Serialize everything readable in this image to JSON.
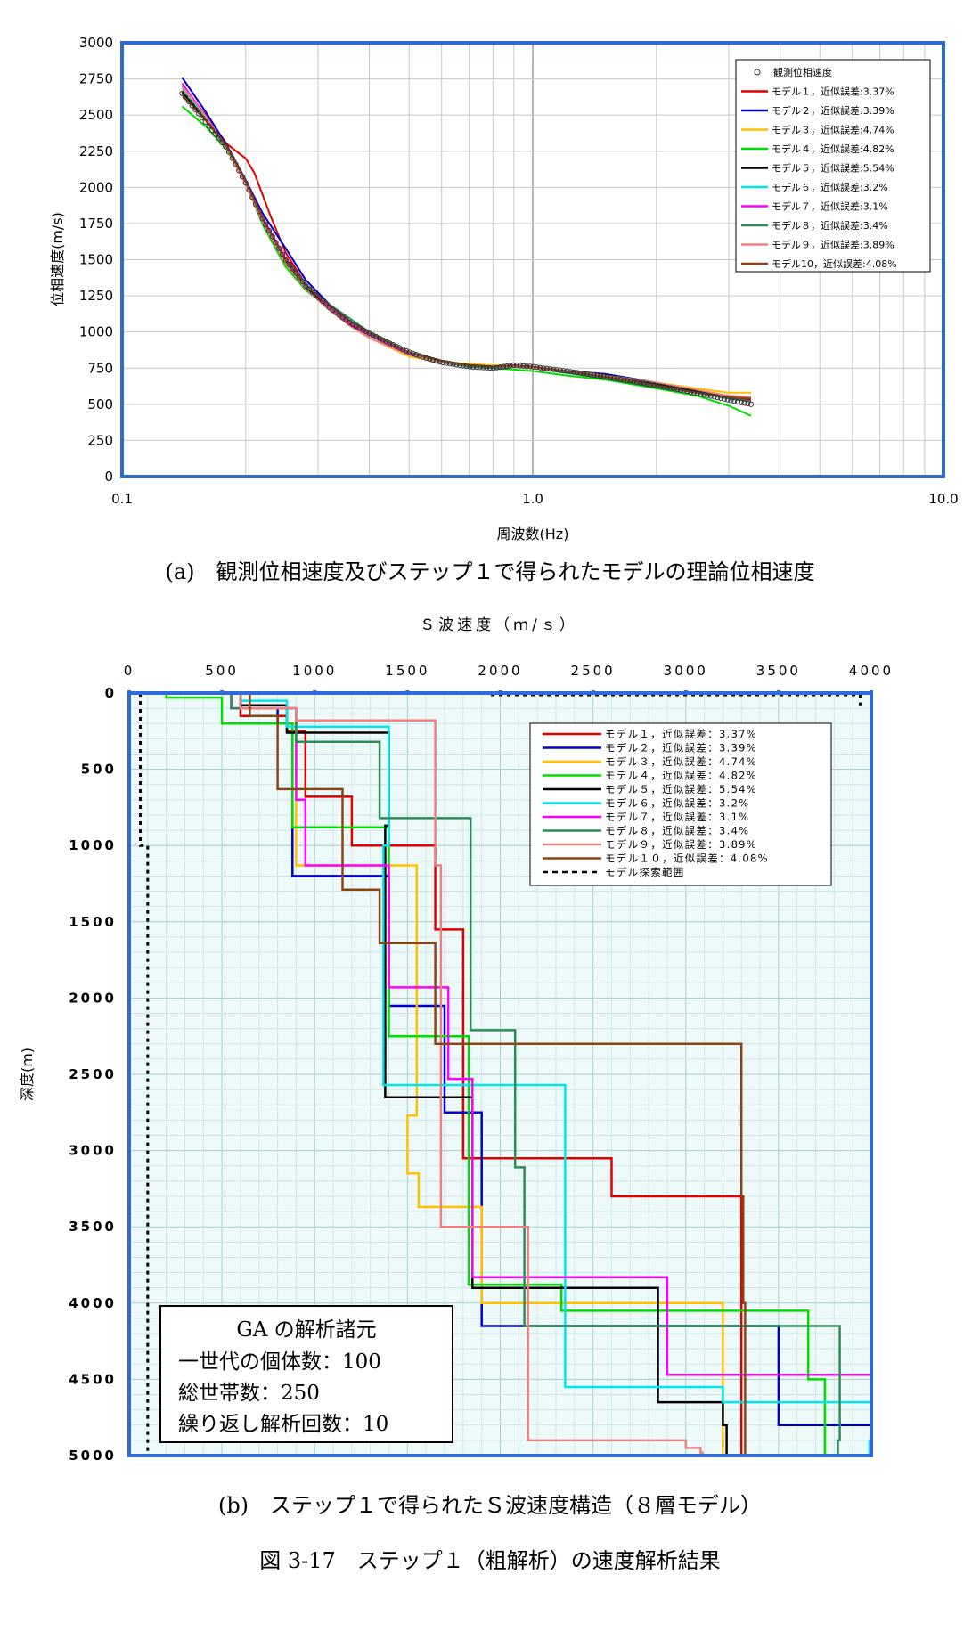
{
  "chart_data": [
    {
      "type": "line",
      "xscale": "log",
      "xlabel": "周波数(Hz)",
      "ylabel": "位相速度(m/s)",
      "xlim": [
        0.1,
        10.0
      ],
      "ylim": [
        0,
        3000
      ],
      "grid": true,
      "legend": "top-right",
      "xticks": [
        "0.1",
        "1.0",
        "10.0"
      ],
      "yticks": [
        "0",
        "250",
        "500",
        "750",
        "1000",
        "1250",
        "1500",
        "1750",
        "2000",
        "2250",
        "2500",
        "2750",
        "3000"
      ],
      "observed": {
        "name": "観測位相速度",
        "x": [
          0.14,
          0.16,
          0.18,
          0.2,
          0.22,
          0.25,
          0.28,
          0.32,
          0.36,
          0.4,
          0.45,
          0.5,
          0.55,
          0.6,
          0.7,
          0.8,
          0.9,
          1.0,
          1.2,
          1.5,
          2.0,
          2.5,
          3.0,
          3.4
        ],
        "y": [
          2650,
          2450,
          2270,
          2030,
          1780,
          1500,
          1320,
          1170,
          1060,
          990,
          920,
          860,
          820,
          790,
          760,
          750,
          770,
          760,
          730,
          690,
          630,
          580,
          530,
          500
        ]
      },
      "series": [
        {
          "name": "モデル１，近似誤差:3.37%",
          "color": "#e00000",
          "x": [
            0.14,
            0.16,
            0.18,
            0.2,
            0.21,
            0.23,
            0.25,
            0.28,
            0.32,
            0.36,
            0.4,
            0.5,
            0.6,
            0.7,
            0.8,
            0.9,
            1.0,
            1.2,
            1.5,
            2.0,
            2.5,
            3.0,
            3.4
          ],
          "y": [
            2700,
            2500,
            2300,
            2200,
            2100,
            1800,
            1550,
            1330,
            1160,
            1050,
            980,
            850,
            790,
            770,
            760,
            770,
            760,
            730,
            700,
            640,
            590,
            550,
            530
          ]
        },
        {
          "name": "モデル２，近似誤差:3.39%",
          "color": "#0000cc",
          "x": [
            0.14,
            0.16,
            0.18,
            0.2,
            0.22,
            0.25,
            0.28,
            0.32,
            0.36,
            0.4,
            0.5,
            0.6,
            0.7,
            0.8,
            0.9,
            1.0,
            1.2,
            1.5,
            2.0,
            2.5,
            3.0,
            3.4
          ],
          "y": [
            2760,
            2520,
            2290,
            2050,
            1820,
            1580,
            1360,
            1190,
            1070,
            990,
            860,
            790,
            760,
            750,
            760,
            750,
            730,
            710,
            650,
            590,
            540,
            520
          ]
        },
        {
          "name": "モデル３，近似誤差:4.74%",
          "color": "#ffc000",
          "x": [
            0.14,
            0.16,
            0.18,
            0.2,
            0.22,
            0.25,
            0.28,
            0.32,
            0.36,
            0.4,
            0.5,
            0.6,
            0.7,
            0.8,
            0.9,
            1.0,
            1.2,
            1.5,
            2.0,
            2.5,
            3.0,
            3.4
          ],
          "y": [
            2680,
            2480,
            2270,
            2020,
            1760,
            1480,
            1300,
            1150,
            1040,
            960,
            830,
            790,
            780,
            770,
            760,
            750,
            730,
            700,
            650,
            610,
            580,
            580
          ]
        },
        {
          "name": "モデル４，近似誤差:4.82%",
          "color": "#00dd00",
          "x": [
            0.14,
            0.16,
            0.18,
            0.2,
            0.22,
            0.25,
            0.28,
            0.32,
            0.36,
            0.4,
            0.5,
            0.6,
            0.7,
            0.8,
            0.9,
            1.0,
            1.2,
            1.5,
            2.0,
            2.5,
            3.0,
            3.4
          ],
          "y": [
            2560,
            2420,
            2260,
            2030,
            1740,
            1450,
            1290,
            1160,
            1060,
            980,
            850,
            790,
            760,
            750,
            740,
            730,
            700,
            670,
            610,
            560,
            490,
            420
          ]
        },
        {
          "name": "モデル５，近似誤差:5.54%",
          "color": "#000000",
          "x": [
            0.14,
            0.16,
            0.18,
            0.2,
            0.22,
            0.25,
            0.28,
            0.32,
            0.36,
            0.4,
            0.5,
            0.6,
            0.7,
            0.8,
            0.9,
            1.0,
            1.2,
            1.5,
            2.0,
            2.5,
            3.0,
            3.4
          ],
          "y": [
            2660,
            2470,
            2280,
            2030,
            1770,
            1490,
            1310,
            1170,
            1060,
            990,
            860,
            800,
            770,
            760,
            760,
            750,
            730,
            700,
            640,
            590,
            550,
            540
          ]
        },
        {
          "name": "モデル６，近似誤差:3.2%",
          "color": "#00e5ee",
          "x": [
            0.14,
            0.16,
            0.18,
            0.2,
            0.22,
            0.25,
            0.28,
            0.32,
            0.36,
            0.4,
            0.5,
            0.6,
            0.7,
            0.8,
            0.9,
            1.0,
            1.2,
            1.5,
            2.0,
            2.5,
            3.0,
            3.4
          ],
          "y": [
            2690,
            2480,
            2270,
            2030,
            1790,
            1510,
            1330,
            1180,
            1070,
            990,
            860,
            790,
            760,
            750,
            760,
            750,
            730,
            690,
            630,
            580,
            540,
            520
          ]
        },
        {
          "name": "モデル７，近似誤差:3.1%",
          "color": "#ff00ff",
          "x": [
            0.14,
            0.16,
            0.18,
            0.2,
            0.22,
            0.25,
            0.28,
            0.32,
            0.36,
            0.4,
            0.5,
            0.6,
            0.7,
            0.8,
            0.9,
            1.0,
            1.2,
            1.5,
            2.0,
            2.5,
            3.0,
            3.4
          ],
          "y": [
            2720,
            2490,
            2280,
            2040,
            1790,
            1510,
            1330,
            1170,
            1060,
            980,
            850,
            790,
            760,
            750,
            760,
            750,
            730,
            690,
            630,
            580,
            540,
            520
          ]
        },
        {
          "name": "モデル８，近似誤差:3.4%",
          "color": "#2e8b57",
          "x": [
            0.14,
            0.16,
            0.18,
            0.2,
            0.22,
            0.25,
            0.28,
            0.32,
            0.36,
            0.4,
            0.5,
            0.6,
            0.7,
            0.8,
            0.9,
            1.0,
            1.2,
            1.5,
            2.0,
            2.5,
            3.0,
            3.4
          ],
          "y": [
            2640,
            2460,
            2270,
            2030,
            1770,
            1490,
            1320,
            1190,
            1090,
            1000,
            860,
            790,
            760,
            750,
            760,
            750,
            720,
            680,
            620,
            580,
            540,
            520
          ]
        },
        {
          "name": "モデル９，近似誤差:3.89%",
          "color": "#f08080",
          "x": [
            0.14,
            0.16,
            0.18,
            0.2,
            0.22,
            0.25,
            0.28,
            0.32,
            0.36,
            0.4,
            0.5,
            0.6,
            0.7,
            0.8,
            0.9,
            1.0,
            1.2,
            1.5,
            2.0,
            2.5,
            3.0,
            3.4
          ],
          "y": [
            2700,
            2490,
            2270,
            2020,
            1760,
            1470,
            1300,
            1150,
            1040,
            960,
            840,
            790,
            770,
            760,
            760,
            750,
            730,
            700,
            650,
            600,
            560,
            550
          ]
        },
        {
          "name": "モデル10，近似誤差:4.08%",
          "color": "#8b4513",
          "x": [
            0.14,
            0.16,
            0.18,
            0.2,
            0.22,
            0.25,
            0.28,
            0.32,
            0.36,
            0.4,
            0.5,
            0.6,
            0.7,
            0.8,
            0.9,
            1.0,
            1.2,
            1.5,
            2.0,
            2.5,
            3.0,
            3.4
          ],
          "y": [
            2640,
            2460,
            2280,
            2040,
            1780,
            1500,
            1330,
            1180,
            1070,
            990,
            860,
            800,
            770,
            760,
            770,
            760,
            730,
            690,
            630,
            580,
            550,
            540
          ]
        }
      ]
    },
    {
      "type": "line",
      "xlabel": "Ｓ波速度（ｍ/ｓ）",
      "ylabel": "深度(m)",
      "xlim": [
        0,
        4000
      ],
      "ylim": [
        5000,
        0
      ],
      "grid": true,
      "legend": "top-right",
      "xticks": [
        "0",
        "500",
        "1000",
        "1500",
        "2000",
        "2500",
        "3000",
        "3500",
        "4000"
      ],
      "yticks": [
        "0",
        "500",
        "1000",
        "1500",
        "2000",
        "2500",
        "3000",
        "3500",
        "4000",
        "4500",
        "5000"
      ],
      "series": [
        {
          "name": "モデル１，近似誤差：3.37%",
          "color": "#e00000",
          "velocity": [
            600,
            850,
            950,
            1200,
            1650,
            1800,
            2600,
            3300
          ],
          "bottom": [
            150,
            250,
            680,
            1000,
            1550,
            3050,
            3300,
            5000
          ]
        },
        {
          "name": "モデル２，近似誤差：3.39%",
          "color": "#0000cc",
          "velocity": [
            600,
            800,
            880,
            1400,
            1700,
            1900,
            3500,
            4000
          ],
          "bottom": [
            100,
            200,
            1200,
            2050,
            2750,
            4150,
            4800,
            5000
          ]
        },
        {
          "name": "モデル３，近似誤差：4.74%",
          "color": "#ffc000",
          "velocity": [
            600,
            850,
            900,
            1550,
            1500,
            1560,
            1900,
            3200
          ],
          "bottom": [
            100,
            200,
            1130,
            2770,
            3150,
            3370,
            4000,
            5000
          ]
        },
        {
          "name": "モデル４，近似誤差：4.82%",
          "color": "#00dd00",
          "velocity": [
            200,
            500,
            880,
            1400,
            1830,
            2330,
            3660,
            3750
          ],
          "bottom": [
            30,
            200,
            880,
            2250,
            3880,
            4050,
            4500,
            5000
          ]
        },
        {
          "name": "モデル５，近似誤差：5.54%",
          "color": "#000000",
          "velocity": [
            600,
            850,
            1400,
            1380,
            1850,
            2850,
            3200,
            3220
          ],
          "bottom": [
            80,
            260,
            870,
            2650,
            3900,
            4650,
            4800,
            5000
          ]
        },
        {
          "name": "モデル６，近似誤差：3.2%",
          "color": "#00e5ee",
          "velocity": [
            600,
            850,
            1400,
            1370,
            2350,
            3200,
            4000,
            3990
          ],
          "bottom": [
            50,
            220,
            1000,
            2570,
            4550,
            4650,
            4900,
            5000
          ]
        },
        {
          "name": "モデル７，近似誤差：3.1%",
          "color": "#ff00ff",
          "velocity": [
            550,
            900,
            950,
            1400,
            1720,
            1850,
            2900,
            4000
          ],
          "bottom": [
            100,
            700,
            1130,
            1930,
            2530,
            3830,
            4470,
            5000
          ]
        },
        {
          "name": "モデル８，近似誤差：3.4%",
          "color": "#2e8b57",
          "velocity": [
            550,
            900,
            1350,
            1840,
            2080,
            2130,
            3830,
            3820
          ],
          "bottom": [
            100,
            320,
            820,
            2210,
            3110,
            4150,
            4900,
            5000
          ]
        },
        {
          "name": "モデル９，近似誤差：3.89%",
          "color": "#f08080",
          "velocity": [
            600,
            900,
            1650,
            1680,
            2150,
            3000,
            3080,
            3090
          ],
          "bottom": [
            100,
            180,
            1130,
            3500,
            4900,
            4950,
            4980,
            5000
          ]
        },
        {
          "name": "モデル１０，近似誤差：4.08%",
          "color": "#8b4513",
          "velocity": [
            650,
            800,
            1150,
            1350,
            1650,
            3300,
            3310,
            3320
          ],
          "bottom": [
            150,
            630,
            1290,
            1640,
            2300,
            3300,
            4000,
            5000
          ]
        },
        {
          "name": "モデル探索範囲",
          "color": "#000000",
          "dashed": true
        }
      ],
      "annotation": {
        "title": "GA の解析諸元",
        "lines": [
          "一世代の個体数：100",
          "総世帯数：250",
          "繰り返し解析回数：10"
        ]
      }
    }
  ],
  "captions": {
    "a": "(a)　観測位相速度及びステップ１で得られたモデルの理論位相速度",
    "b": "(b)　ステップ１で得られたＳ波速度構造（８層モデル）",
    "figure": "図 3-17　ステップ１（粗解析）の速度解析結果"
  }
}
